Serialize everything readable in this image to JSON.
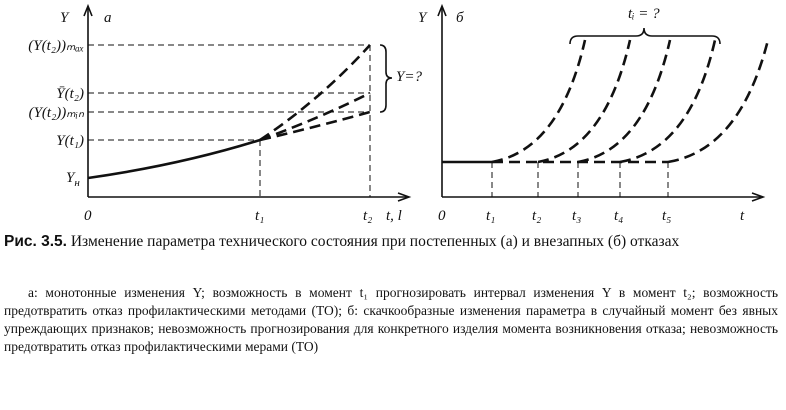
{
  "figure": {
    "panel_a": {
      "label": "а",
      "y_axis": "Y",
      "x_axis": "t, l",
      "origin": "0",
      "y_labels": [
        "(Y(t₂))ₘₐₓ",
        "Ȳ(t₂)",
        "(Y(t₂))ₘᵢₙ",
        "Y(t₁)"
      ],
      "y_start": {
        "main": "Y",
        "sub": "н"
      },
      "x_labels": [
        "t₁",
        "t₂"
      ],
      "annotation": "Y=?"
    },
    "panel_b": {
      "label": "б",
      "y_axis": "Y",
      "x_axis": "t",
      "origin": "0",
      "x_labels": [
        "t₁",
        "t₂",
        "t₃",
        "t₄",
        "t₅"
      ],
      "annotation": "tᵢ = ?"
    }
  },
  "caption": {
    "number": "Рис. 3.5.",
    "text": "Изменение параметра технического состояния при постепенных (а) и внезапных (б) отказах"
  },
  "description": "а: монотонные изменения Y; возможность в момент t₁ прогнозировать интервал изменения Y в момент t₂; возможность предотвратить отказ профилактическими методами (ТО); б: скачкообразные изменения параметра в случайный момент без явных упреждающих признаков; невозможность прогнозирования для конкретного изделия момента возникновения отказа; невозможность предотвратить отказ профилактическими мерами (ТО)"
}
